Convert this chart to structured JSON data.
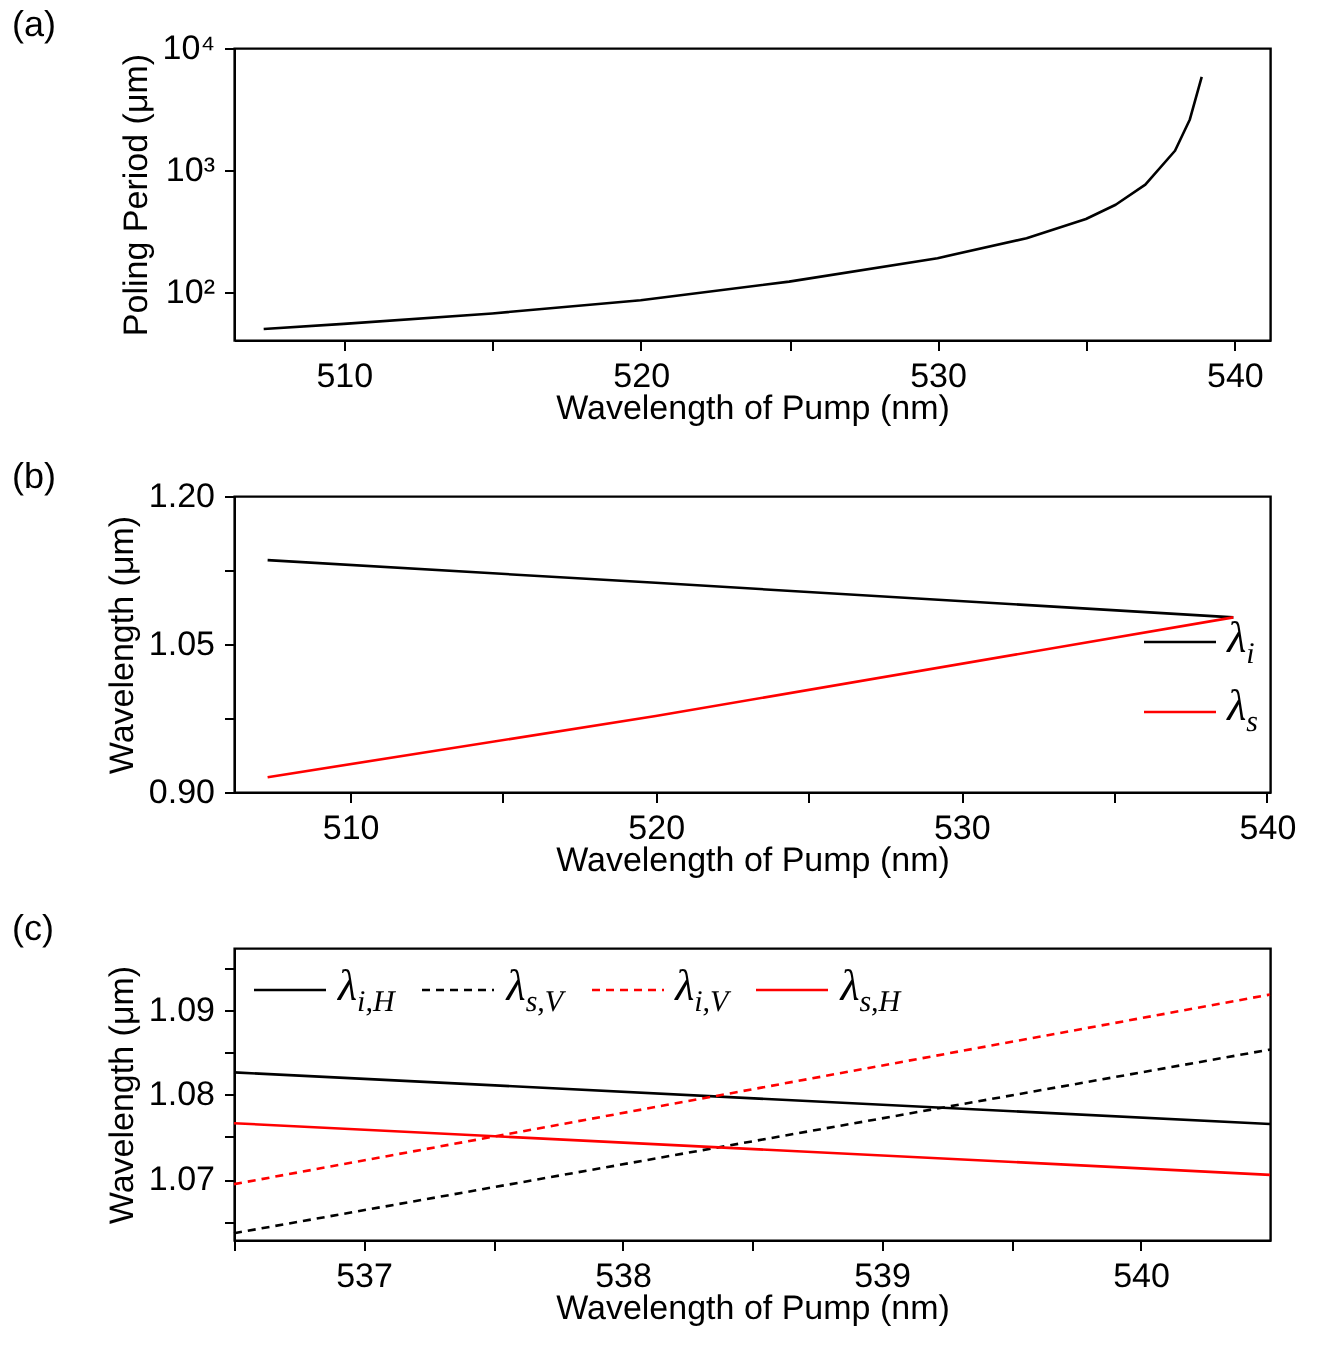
{
  "chart_data": [
    {
      "type": "line",
      "annotations": [
        "(a)"
      ],
      "xlabel": "Wavelength of Pump (nm)",
      "ylabel": "Poling Period (μm)",
      "log": "y",
      "grid": false,
      "xlim": [
        506.3,
        541.2
      ],
      "xticks": [
        510,
        {
          "value": 515,
          "label": null
        },
        520,
        {
          "value": 525,
          "label": null
        },
        530,
        {
          "value": 535,
          "label": null
        },
        540
      ],
      "ylim": [
        40.6,
        10000
      ],
      "yticks": [
        {
          "value": 100,
          "label": "10²"
        },
        {
          "value": 1000,
          "label": "10³"
        },
        {
          "value": 10000,
          "label": "10⁴"
        }
      ],
      "series": [
        {
          "color": "#000000",
          "x": [
            507.3,
            510,
            515,
            520,
            525,
            530,
            533,
            535,
            536,
            537,
            538,
            538.5,
            538.9
          ],
          "values": [
            50,
            55,
            67,
            86,
            122,
            190,
            277,
            398,
            520,
            760,
            1440,
            2600,
            5800
          ]
        }
      ]
    },
    {
      "type": "line",
      "annotations": [
        "(b)"
      ],
      "xlabel": "Wavelength of Pump (nm)",
      "ylabel": "Wavelength (μm)",
      "grid": false,
      "legend": "bottom right",
      "xlim": [
        506.2,
        540.1
      ],
      "xticks": [
        510,
        {
          "value": 515,
          "label": null
        },
        520,
        {
          "value": 525,
          "label": null
        },
        530,
        {
          "value": 535,
          "label": null
        },
        540
      ],
      "ylim": [
        0.9,
        1.2
      ],
      "yticks": [
        {
          "value": 0.9,
          "label": "0.90"
        },
        {
          "value": 0.975,
          "label": null
        },
        {
          "value": 1.05,
          "label": "1.05"
        },
        {
          "value": 1.125,
          "label": null
        },
        {
          "value": 1.2,
          "label": "1.20"
        }
      ],
      "series": [
        {
          "name": "λ$_{i}$",
          "color": "#000000",
          "x": [
            507.3,
            520,
            538.9
          ],
          "values": [
            1.135,
            1.112,
            1.077
          ]
        },
        {
          "name": "λ$_{s}$",
          "color": "#ff0000",
          "x": [
            507.3,
            520,
            538.9
          ],
          "values": [
            0.915,
            0.977,
            1.077
          ]
        }
      ]
    },
    {
      "type": "line",
      "annotations": [
        "(c)"
      ],
      "xlabel": "Wavelength of Pump (nm)",
      "ylabel": "Wavelength (μm)",
      "grid": false,
      "legend": "top",
      "xlim": [
        536.5,
        540.5
      ],
      "xticks": [
        {
          "value": 536.5,
          "label": null
        },
        537,
        {
          "value": 537.5,
          "label": null
        },
        538,
        {
          "value": 538.5,
          "label": null
        },
        539,
        {
          "value": 539.5,
          "label": null
        },
        540
      ],
      "ylim": [
        1.0628,
        1.0973
      ],
      "yticks": [
        {
          "value": 1.065,
          "label": null
        },
        {
          "value": 1.07,
          "label": "1.07"
        },
        {
          "value": 1.075,
          "label": null
        },
        {
          "value": 1.08,
          "label": "1.08"
        },
        {
          "value": 1.085,
          "label": null
        },
        {
          "value": 1.09,
          "label": "1.09"
        },
        {
          "value": 1.095,
          "label": null
        }
      ],
      "series": [
        {
          "name": "λ$_{i,H}$",
          "color": "#000000",
          "line_style": "solid",
          "x": [
            536.5,
            540.5
          ],
          "values": [
            1.0826,
            1.0765
          ]
        },
        {
          "name": "λ$_{s,V}$",
          "color": "#000000",
          "line_style": "dashed",
          "x": [
            536.5,
            540.5
          ],
          "values": [
            1.0636,
            1.0853
          ]
        },
        {
          "name": "λ$_{i,V}$",
          "color": "#ff0000",
          "line_style": "dashed",
          "x": [
            536.5,
            540.5
          ],
          "values": [
            1.0694,
            1.0918
          ]
        },
        {
          "name": "λ$_{s,H}$",
          "color": "#ff0000",
          "line_style": "solid",
          "x": [
            536.5,
            540.5
          ],
          "values": [
            1.0766,
            1.0705
          ]
        }
      ]
    }
  ]
}
